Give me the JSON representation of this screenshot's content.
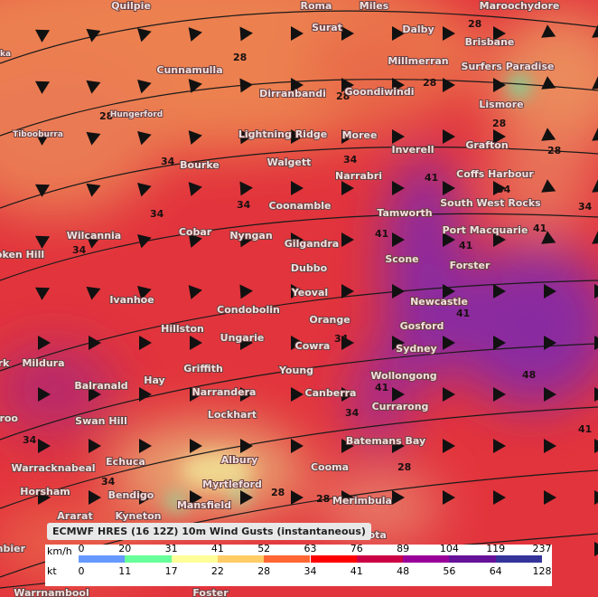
{
  "map": {
    "cities": [
      "Quilpie",
      "Roma",
      "Miles",
      "Maroochydore",
      "Surat",
      "Dalby",
      "Brisbane",
      "Cunnamulla",
      "Millmerran",
      "Surfers Paradise",
      "Dirranbandi",
      "Goondiwindi",
      "Lismore",
      "Hungerford",
      "Tibooburra",
      "Lightning Ridge",
      "Moree",
      "Inverell",
      "Grafton",
      "Bourke",
      "Walgett",
      "Narrabri",
      "Coffs Harbour",
      "Coonamble",
      "Tamworth",
      "South West Rocks",
      "Wilcannia",
      "Cobar",
      "Nyngan",
      "Gilgandra",
      "Port Macquarie",
      "oken Hill",
      "Scone",
      "Dubbo",
      "Forster",
      "Yeoval",
      "Ivanhoe",
      "Condobolin",
      "Newcastle",
      "Hillston",
      "Orange",
      "Gosford",
      "Ungarie",
      "Cowra",
      "Sydney",
      "Mildura",
      "rk",
      "Hay",
      "Griffith",
      "Young",
      "Wollongong",
      "Balranald",
      "Narrandera",
      "Canberra",
      "Currarong",
      "Swan Hill",
      "rroo",
      "Lockhart",
      "Batemans Bay",
      "Echuca",
      "Albury",
      "Cooma",
      "Warracknabeal",
      "Myrtleford",
      "Horsham",
      "Bendigo",
      "Mansfield",
      "Merimbula",
      "Kyneton",
      "Ararat",
      "Mallacoota",
      "mbier",
      "Warrnambool",
      "Foster",
      "ka"
    ],
    "contour_labels": [
      "28",
      "28",
      "28",
      "28",
      "28",
      "28",
      "28",
      "34",
      "34",
      "34",
      "34",
      "34",
      "34",
      "34",
      "41",
      "41",
      "41",
      "41",
      "41",
      "41",
      "48",
      "34",
      "34",
      "34",
      "28",
      "28",
      "28",
      "34",
      "41"
    ]
  },
  "legend": {
    "title": "ECMWF HRES (16 12Z) 10m Wind Gusts (instantaneous)",
    "unit_top": "km/h",
    "unit_bottom": "kt",
    "kmh_ticks": [
      "0",
      "20",
      "31",
      "41",
      "52",
      "63",
      "76",
      "89",
      "104",
      "119",
      "237"
    ],
    "kt_ticks": [
      "0",
      "11",
      "17",
      "22",
      "28",
      "34",
      "41",
      "48",
      "56",
      "64",
      "128"
    ],
    "colors": [
      "#6699ff",
      "#66ff99",
      "#ffff99",
      "#ffcc66",
      "#ff6633",
      "#ff0000",
      "#cc0044",
      "#990099",
      "#661199",
      "#333399"
    ]
  }
}
